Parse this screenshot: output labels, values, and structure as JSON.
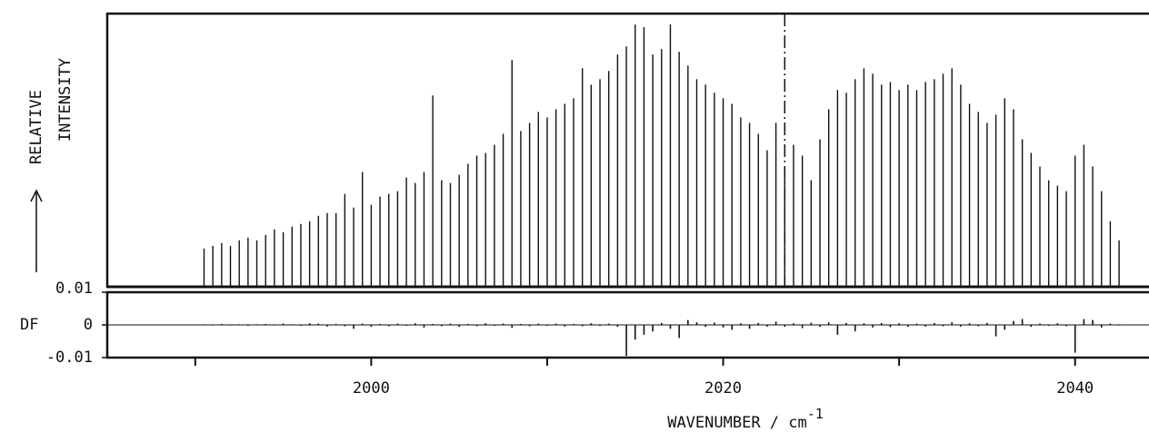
{
  "chart_data": {
    "type": "stick",
    "y_label": [
      "RELATIVE",
      "INTENSITY"
    ],
    "x_label": [
      "WAVENUMBER / cm",
      "-1"
    ],
    "xlim": [
      1985,
      2044.2
    ],
    "xticks": [
      2000,
      2020,
      2040
    ],
    "xminor_ticks": [
      1990,
      2010,
      2030
    ],
    "marker_x": 2023.5,
    "ylim": [
      0,
      1
    ],
    "color": "#111111",
    "x": [
      1990.5,
      1991,
      1991.5,
      1992,
      1992.5,
      1993,
      1993.5,
      1994,
      1994.5,
      1995,
      1995.5,
      1996,
      1996.5,
      1997,
      1997.5,
      1998,
      1998.5,
      1999,
      1999.5,
      2000,
      2000.5,
      2001,
      2001.5,
      2002,
      2002.5,
      2003,
      2003.5,
      2004,
      2004.5,
      2005,
      2005.5,
      2006,
      2006.5,
      2007,
      2007.5,
      2008,
      2008.5,
      2009,
      2009.5,
      2010,
      2010.5,
      2011,
      2011.5,
      2012,
      2012.5,
      2013,
      2013.5,
      2014,
      2014.5,
      2015,
      2015.5,
      2016,
      2016.5,
      2017,
      2017.5,
      2018,
      2018.5,
      2019,
      2019.5,
      2020,
      2020.5,
      2021,
      2021.5,
      2022,
      2022.5,
      2023,
      2023.5,
      2024,
      2024.5,
      2025,
      2025.5,
      2026,
      2026.5,
      2027,
      2027.5,
      2028,
      2028.5,
      2029,
      2029.5,
      2030,
      2030.5,
      2031,
      2031.5,
      2032,
      2032.5,
      2033,
      2033.5,
      2034,
      2034.5,
      2035,
      2035.5,
      2036,
      2036.5,
      2037,
      2037.5,
      2038,
      2038.5,
      2039,
      2039.5,
      2040,
      2040.5,
      2041,
      2041.5,
      2042,
      2042.5
    ],
    "values": [
      0.14,
      0.15,
      0.16,
      0.15,
      0.17,
      0.18,
      0.17,
      0.19,
      0.21,
      0.2,
      0.22,
      0.23,
      0.24,
      0.26,
      0.27,
      0.27,
      0.34,
      0.29,
      0.42,
      0.3,
      0.33,
      0.34,
      0.35,
      0.4,
      0.38,
      0.42,
      0.7,
      0.39,
      0.38,
      0.41,
      0.45,
      0.48,
      0.49,
      0.52,
      0.56,
      0.83,
      0.57,
      0.6,
      0.64,
      0.62,
      0.65,
      0.67,
      0.69,
      0.8,
      0.74,
      0.76,
      0.79,
      0.85,
      0.88,
      0.96,
      0.95,
      0.85,
      0.87,
      0.96,
      0.86,
      0.81,
      0.76,
      0.74,
      0.71,
      0.69,
      0.67,
      0.62,
      0.6,
      0.56,
      0.5,
      0.6,
      0.44,
      0.52,
      0.48,
      0.39,
      0.54,
      0.65,
      0.72,
      0.71,
      0.76,
      0.8,
      0.78,
      0.74,
      0.75,
      0.72,
      0.74,
      0.72,
      0.75,
      0.76,
      0.78,
      0.8,
      0.74,
      0.67,
      0.64,
      0.6,
      0.63,
      0.69,
      0.65,
      0.54,
      0.49,
      0.44,
      0.39,
      0.37,
      0.35,
      0.48,
      0.52,
      0.44,
      0.35,
      0.24,
      0.17
    ],
    "residual": {
      "label": "DF",
      "ylim": [
        -0.01,
        0.01
      ],
      "yticks": [
        0.01,
        0,
        -0.01
      ],
      "values": [
        0.0002,
        -0.0002,
        0.0003,
        -0.0002,
        0.0002,
        -0.0003,
        0.0002,
        0.0003,
        -0.0002,
        0.0004,
        0.0002,
        -0.0003,
        0.0005,
        0.0004,
        -0.0005,
        0.0003,
        -0.0004,
        -0.0012,
        0.0004,
        -0.0006,
        0.0003,
        -0.0004,
        0.0004,
        -0.0003,
        0.0005,
        -0.0008,
        0.0003,
        -0.0004,
        0.0004,
        -0.0006,
        0.0003,
        -0.0004,
        0.0005,
        -0.0003,
        0.0004,
        -0.0009,
        0.0003,
        -0.0004,
        0.0004,
        -0.0003,
        0.0004,
        -0.0005,
        0.0003,
        -0.0004,
        0.0005,
        -0.0003,
        0.0004,
        -0.0006,
        -0.0095,
        -0.0045,
        -0.003,
        -0.002,
        0.0006,
        -0.0012,
        -0.004,
        0.0015,
        0.0008,
        -0.0006,
        0.0007,
        -0.0008,
        -0.0015,
        0.0005,
        -0.0012,
        0.0006,
        -0.0005,
        0.001,
        -0.0006,
        0.0005,
        -0.001,
        0.0007,
        -0.0006,
        0.0008,
        -0.003,
        0.0006,
        -0.002,
        0.0005,
        -0.0008,
        0.0006,
        -0.0007,
        0.0005,
        -0.0006,
        0.0004,
        -0.0005,
        0.0006,
        -0.0004,
        0.0008,
        -0.0005,
        0.0005,
        -0.0004,
        0.0006,
        -0.0035,
        -0.0015,
        0.0012,
        0.0018,
        -0.0006,
        0.0004,
        -0.0003,
        0.0005,
        -0.0004,
        -0.0085,
        0.0018,
        0.0015,
        -0.0008,
        0.0004,
        -0.0002
      ]
    }
  }
}
